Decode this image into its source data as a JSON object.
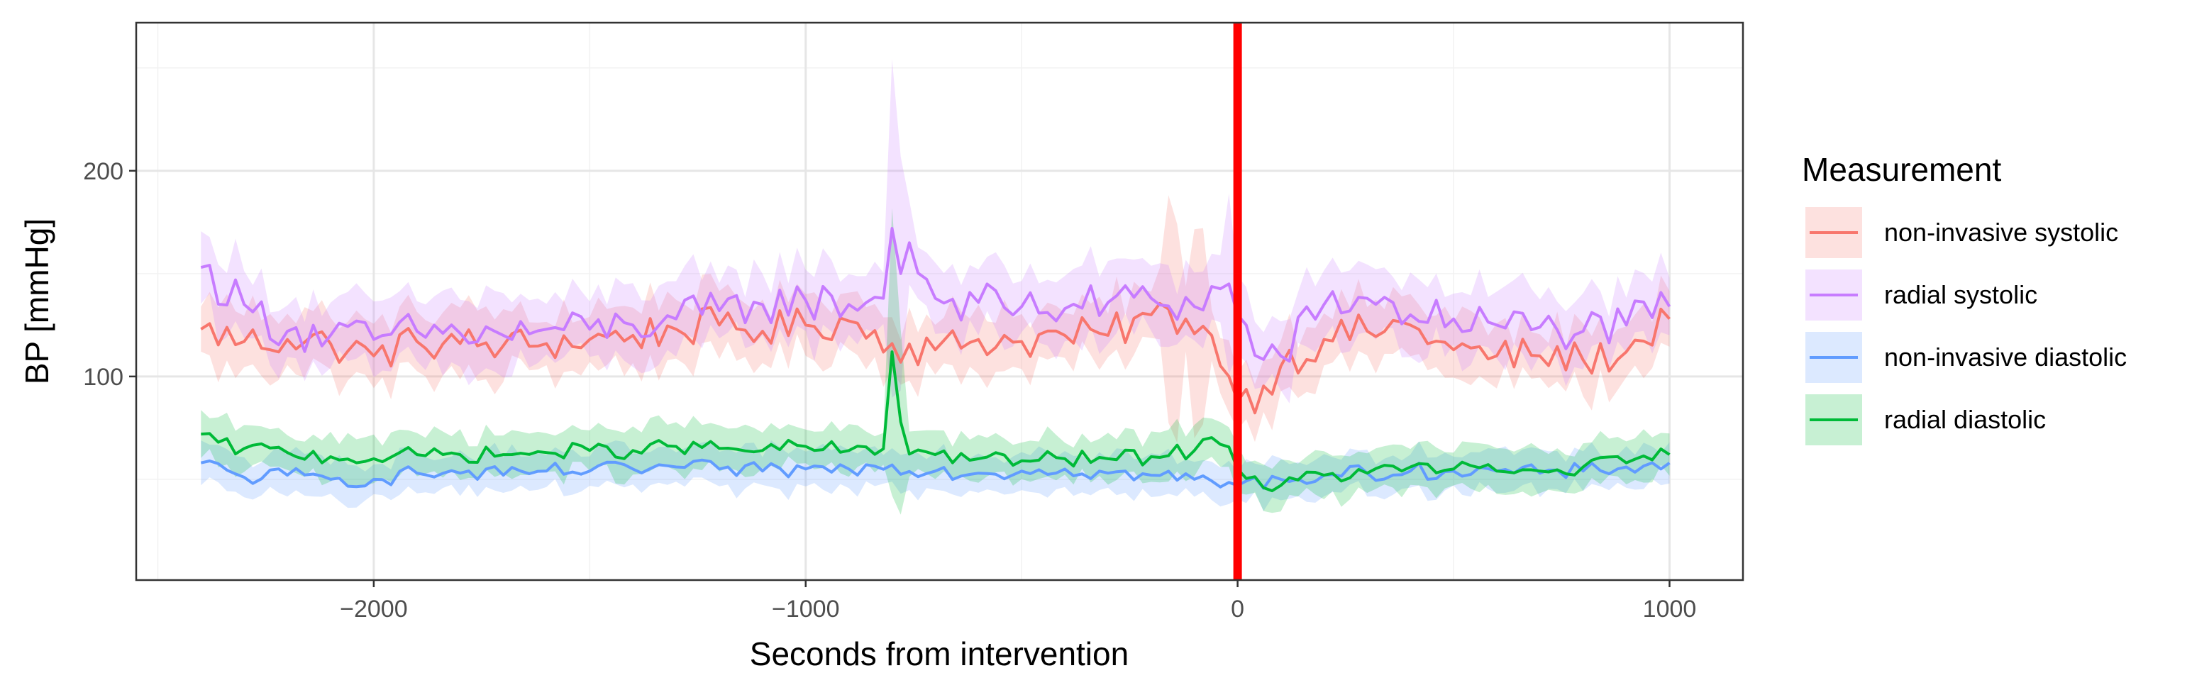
{
  "chart_data": {
    "type": "line",
    "xlabel": "Seconds from intervention",
    "ylabel": "BP [mmHg]",
    "xlim": [
      -2550,
      1170
    ],
    "ylim": [
      1,
      272
    ],
    "x_ticks": [
      -2000,
      -1000,
      0,
      1000
    ],
    "y_ticks": [
      100,
      200
    ],
    "grid": true,
    "legend": {
      "title": "Measurement",
      "position": "right"
    },
    "vline": {
      "x": 0,
      "color": "#ff0000"
    },
    "series": [
      {
        "name": "non-invasive systolic",
        "color": "#f8766d",
        "ribbon_width": 14,
        "spikes": [
          [
            -150,
            40
          ],
          [
            -100,
            35
          ],
          [
            -80,
            30
          ]
        ],
        "points": [
          [
            -2400,
            123
          ],
          [
            -2300,
            117
          ],
          [
            -2200,
            118
          ],
          [
            -2100,
            116
          ],
          [
            -2000,
            110
          ],
          [
            -1900,
            117
          ],
          [
            -1800,
            116
          ],
          [
            -1700,
            115
          ],
          [
            -1600,
            116
          ],
          [
            -1500,
            118
          ],
          [
            -1400,
            120
          ],
          [
            -1300,
            123
          ],
          [
            -1200,
            125
          ],
          [
            -1100,
            122
          ],
          [
            -1000,
            125
          ],
          [
            -900,
            127
          ],
          [
            -800,
            116
          ],
          [
            -700,
            113
          ],
          [
            -600,
            118
          ],
          [
            -500,
            117
          ],
          [
            -400,
            120
          ],
          [
            -300,
            120
          ],
          [
            -200,
            130
          ],
          [
            -120,
            128
          ],
          [
            -60,
            120
          ],
          [
            -20,
            100
          ],
          [
            0,
            88
          ],
          [
            50,
            92
          ],
          [
            100,
            105
          ],
          [
            200,
            118
          ],
          [
            300,
            122
          ],
          [
            400,
            125
          ],
          [
            500,
            113
          ],
          [
            600,
            110
          ],
          [
            700,
            110
          ],
          [
            800,
            108
          ],
          [
            900,
            112
          ],
          [
            1000,
            128
          ]
        ]
      },
      {
        "name": "radial systolic",
        "color": "#c77cff",
        "ribbon_width": 16,
        "spikes": [
          [
            -800,
            70
          ],
          [
            -780,
            40
          ],
          [
            -20,
            25
          ]
        ],
        "points": [
          [
            -2400,
            153
          ],
          [
            -2350,
            143
          ],
          [
            -2300,
            135
          ],
          [
            -2200,
            122
          ],
          [
            -2100,
            120
          ],
          [
            -2000,
            118
          ],
          [
            -1900,
            122
          ],
          [
            -1800,
            121
          ],
          [
            -1700,
            120
          ],
          [
            -1600,
            123
          ],
          [
            -1500,
            123
          ],
          [
            -1400,
            125
          ],
          [
            -1300,
            128
          ],
          [
            -1200,
            132
          ],
          [
            -1100,
            135
          ],
          [
            -1000,
            137
          ],
          [
            -900,
            135
          ],
          [
            -820,
            138
          ],
          [
            -800,
            172
          ],
          [
            -780,
            150
          ],
          [
            -760,
            165
          ],
          [
            -700,
            138
          ],
          [
            -600,
            136
          ],
          [
            -500,
            134
          ],
          [
            -400,
            133
          ],
          [
            -300,
            136
          ],
          [
            -200,
            138
          ],
          [
            -100,
            134
          ],
          [
            -20,
            145
          ],
          [
            0,
            130
          ],
          [
            50,
            108
          ],
          [
            100,
            110
          ],
          [
            200,
            135
          ],
          [
            300,
            138
          ],
          [
            400,
            130
          ],
          [
            500,
            128
          ],
          [
            600,
            125
          ],
          [
            700,
            124
          ],
          [
            800,
            122
          ],
          [
            900,
            125
          ],
          [
            1000,
            134
          ]
        ]
      },
      {
        "name": "non-invasive diastolic",
        "color": "#619cff",
        "ribbon_width": 9,
        "spikes": [],
        "points": [
          [
            -2400,
            58
          ],
          [
            -2300,
            51
          ],
          [
            -2200,
            52
          ],
          [
            -2100,
            50
          ],
          [
            -2000,
            50
          ],
          [
            -1900,
            53
          ],
          [
            -1800,
            53
          ],
          [
            -1700,
            52
          ],
          [
            -1600,
            54
          ],
          [
            -1500,
            54
          ],
          [
            -1400,
            55
          ],
          [
            -1300,
            56
          ],
          [
            -1200,
            55
          ],
          [
            -1100,
            54
          ],
          [
            -1000,
            55
          ],
          [
            -900,
            55
          ],
          [
            -800,
            57
          ],
          [
            -700,
            54
          ],
          [
            -600,
            53
          ],
          [
            -500,
            54
          ],
          [
            -400,
            55
          ],
          [
            -300,
            53
          ],
          [
            -200,
            52
          ],
          [
            -100,
            50
          ],
          [
            0,
            47
          ],
          [
            100,
            50
          ],
          [
            200,
            52
          ],
          [
            300,
            53
          ],
          [
            400,
            54
          ],
          [
            500,
            54
          ],
          [
            600,
            54
          ],
          [
            700,
            53
          ],
          [
            800,
            54
          ],
          [
            900,
            56
          ],
          [
            1000,
            58
          ]
        ]
      },
      {
        "name": "radial diastolic",
        "color": "#00ba38",
        "ribbon_width": 10,
        "spikes": [
          [
            -800,
            60
          ],
          [
            -780,
            35
          ]
        ],
        "points": [
          [
            -2400,
            72
          ],
          [
            -2350,
            66
          ],
          [
            -2300,
            65
          ],
          [
            -2200,
            63
          ],
          [
            -2100,
            61
          ],
          [
            -2000,
            60
          ],
          [
            -1900,
            62
          ],
          [
            -1800,
            62
          ],
          [
            -1700,
            62
          ],
          [
            -1600,
            63
          ],
          [
            -1500,
            64
          ],
          [
            -1400,
            64
          ],
          [
            -1300,
            66
          ],
          [
            -1200,
            65
          ],
          [
            -1100,
            64
          ],
          [
            -1000,
            66
          ],
          [
            -900,
            64
          ],
          [
            -830,
            62
          ],
          [
            -810,
            70
          ],
          [
            -800,
            112
          ],
          [
            -790,
            90
          ],
          [
            -770,
            66
          ],
          [
            -700,
            62
          ],
          [
            -600,
            60
          ],
          [
            -500,
            59
          ],
          [
            -400,
            60
          ],
          [
            -300,
            60
          ],
          [
            -200,
            61
          ],
          [
            -100,
            64
          ],
          [
            -30,
            72
          ],
          [
            0,
            55
          ],
          [
            50,
            48
          ],
          [
            100,
            47
          ],
          [
            200,
            52
          ],
          [
            300,
            53
          ],
          [
            400,
            56
          ],
          [
            500,
            55
          ],
          [
            600,
            54
          ],
          [
            700,
            54
          ],
          [
            800,
            56
          ],
          [
            900,
            58
          ],
          [
            1000,
            62
          ]
        ]
      }
    ]
  }
}
